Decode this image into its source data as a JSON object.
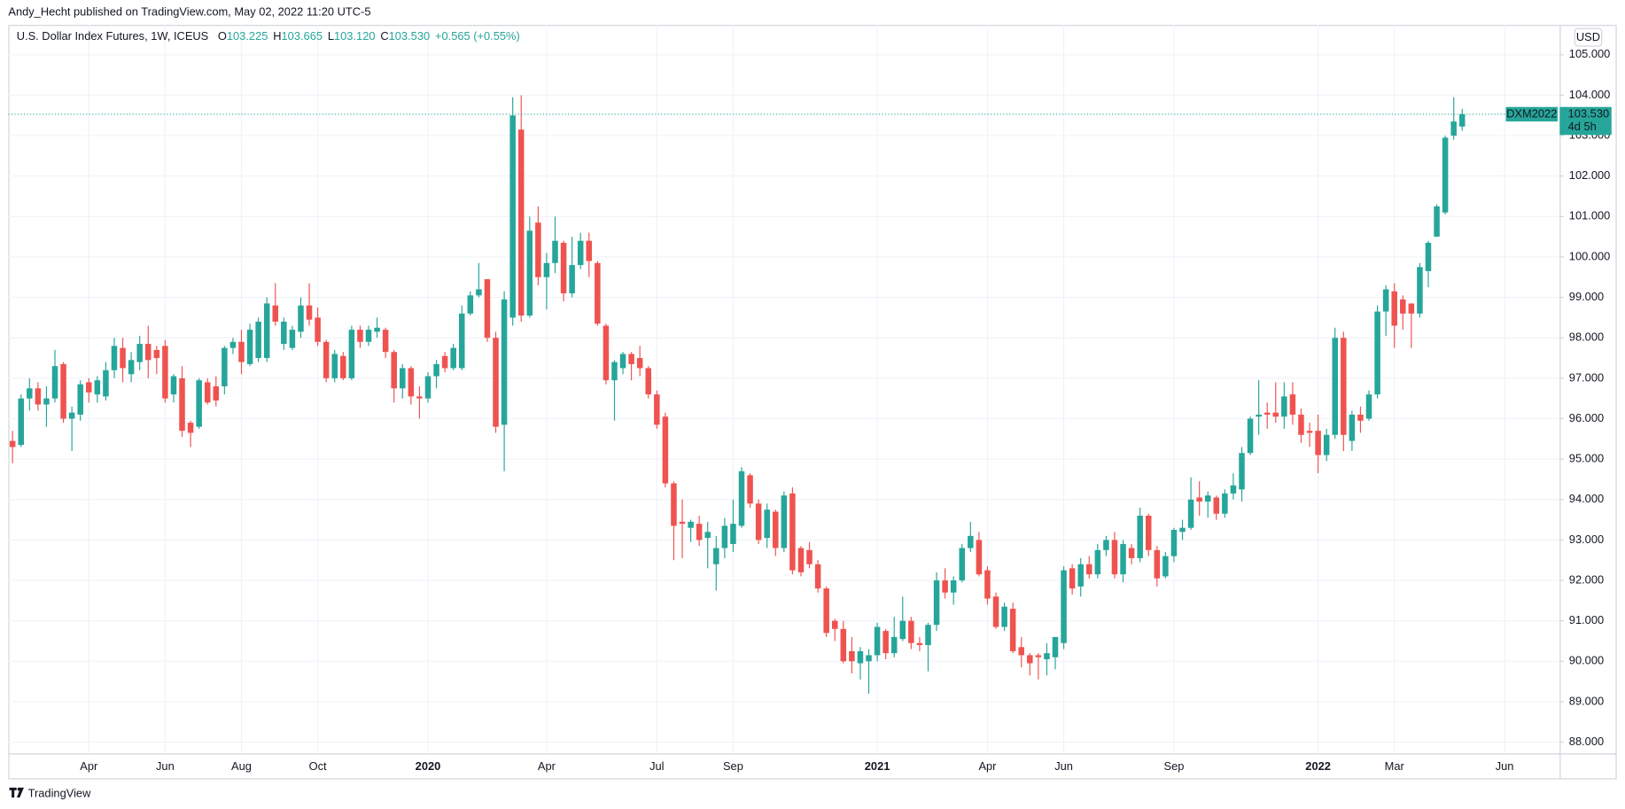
{
  "header": {
    "publisher": "Andy_Hecht published on TradingView.com, May 02, 2022 11:20 UTC-5",
    "brand": "TradingView"
  },
  "chart_data": {
    "type": "candlestick",
    "title": "U.S. Dollar Index Futures, 1W, ICEUS",
    "ohlc_legend": [
      {
        "label": "O",
        "value": "103.225"
      },
      {
        "label": "H",
        "value": "103.665"
      },
      {
        "label": "L",
        "value": "103.120"
      },
      {
        "label": "C",
        "value": "103.530"
      }
    ],
    "change": "+0.565 (+0.55%)",
    "currency": "USD",
    "price_tag": {
      "symbol": "DXM2022",
      "price": "103.530",
      "countdown": "4d 5h"
    },
    "up_color": "#26a69a",
    "down_color": "#ef5350",
    "grid": true,
    "categories": [
      null,
      null,
      null,
      null,
      null,
      null,
      null,
      null,
      null,
      "Apr",
      null,
      null,
      null,
      null,
      null,
      null,
      null,
      null,
      "Jun",
      null,
      null,
      null,
      null,
      null,
      null,
      null,
      null,
      "Aug",
      null,
      null,
      null,
      null,
      null,
      null,
      null,
      null,
      "Oct",
      null,
      null,
      null,
      null,
      null,
      null,
      null,
      null,
      null,
      null,
      null,
      null,
      "2020",
      null,
      null,
      null,
      null,
      null,
      null,
      null,
      null,
      null,
      null,
      null,
      null,
      null,
      "Apr",
      null,
      null,
      null,
      null,
      null,
      null,
      null,
      null,
      null,
      null,
      null,
      null,
      "Jul",
      null,
      null,
      null,
      null,
      null,
      null,
      null,
      null,
      "Sep",
      null,
      null,
      null,
      null,
      null,
      null,
      null,
      null,
      null,
      null,
      null,
      null,
      null,
      null,
      null,
      null,
      "2021",
      null,
      null,
      null,
      null,
      null,
      null,
      null,
      null,
      null,
      null,
      null,
      null,
      "Apr",
      null,
      null,
      null,
      null,
      null,
      null,
      null,
      null,
      "Jun",
      null,
      null,
      null,
      null,
      null,
      null,
      null,
      null,
      null,
      null,
      null,
      null,
      "Sep",
      null,
      null,
      null,
      null,
      null,
      null,
      null,
      null,
      null,
      null,
      null,
      null,
      null,
      null,
      null,
      null,
      "2022",
      null,
      null,
      null,
      null,
      null,
      null,
      null,
      null,
      "Mar",
      null,
      null,
      null,
      null,
      null,
      null,
      null,
      null,
      null,
      null,
      null,
      null,
      "Jun",
      null,
      null,
      null,
      null,
      null,
      null
    ],
    "open": [
      95.45,
      95.35,
      96.5,
      96.75,
      96.35,
      96.5,
      97.35,
      96.0,
      96.1,
      96.9,
      96.6,
      96.55,
      97.2,
      97.75,
      97.1,
      97.4,
      97.85,
      97.7,
      97.8,
      96.6,
      97.0,
      95.9,
      95.8,
      96.9,
      96.8,
      96.8,
      97.75,
      97.9,
      97.35,
      97.5,
      97.5,
      98.8,
      97.85,
      97.75,
      98.15,
      98.8,
      98.5,
      97.9,
      97.0,
      97.55,
      97.0,
      98.2,
      97.9,
      98.15,
      98.2,
      97.65,
      96.75,
      97.25,
      96.55,
      96.5,
      97.05,
      97.55,
      97.25,
      97.25,
      98.6,
      99.05,
      99.45,
      98.0,
      95.85,
      98.5,
      103.15,
      98.55,
      100.85,
      99.5,
      99.85,
      100.35,
      99.1,
      99.8,
      100.4,
      99.85,
      98.3,
      96.95,
      97.25,
      97.6,
      97.5,
      97.25,
      96.6,
      96.05,
      94.4,
      93.45,
      93.3,
      93.4,
      93.05,
      92.4,
      92.8,
      92.9,
      93.35,
      94.6,
      93.9,
      93.05,
      93.7,
      92.8,
      94.15,
      92.8,
      92.75,
      92.4,
      91.8,
      91.0,
      90.8,
      90.25,
      89.95,
      90.0,
      90.15,
      90.75,
      90.2,
      90.55,
      91.0,
      90.45,
      90.4,
      90.9,
      92.0,
      91.7,
      92.0,
      92.8,
      93.0,
      92.25,
      91.6,
      90.85,
      91.3,
      90.35,
      90.15,
      90.15,
      90.05,
      90.1,
      90.45,
      92.3,
      91.85,
      92.4,
      92.15,
      92.75,
      93.0,
      92.15,
      92.8,
      92.55,
      93.6,
      92.75,
      92.1,
      92.6,
      93.2,
      93.3,
      94.05,
      93.95,
      94.05,
      93.65,
      94.15,
      94.25,
      95.15,
      96.05,
      96.15,
      96.15,
      96.05,
      96.6,
      96.1,
      95.7,
      95.7,
      95.1,
      95.6,
      98.0,
      95.45,
      96.1,
      96.0,
      96.6,
      98.65,
      99.15,
      98.95,
      98.85,
      98.6,
      99.65,
      100.5,
      101.1,
      103.0,
      103.225,
      null,
      null,
      null,
      null,
      null,
      null,
      null,
      null,
      null,
      null,
      null
    ],
    "high": [
      95.7,
      96.6,
      97.0,
      96.9,
      96.8,
      97.7,
      97.4,
      96.3,
      96.95,
      97.0,
      97.05,
      97.4,
      98.0,
      98.0,
      97.65,
      98.05,
      98.3,
      97.8,
      97.95,
      97.1,
      97.3,
      95.95,
      97.0,
      97.0,
      97.05,
      97.8,
      98.0,
      98.2,
      98.35,
      98.5,
      99.0,
      99.35,
      98.5,
      98.3,
      99.0,
      99.35,
      98.75,
      97.95,
      97.7,
      97.65,
      98.3,
      98.3,
      98.3,
      98.5,
      98.25,
      97.7,
      97.35,
      97.3,
      96.8,
      97.15,
      97.45,
      97.65,
      97.85,
      98.8,
      99.15,
      99.85,
      99.45,
      98.15,
      99.15,
      103.95,
      104.0,
      101.0,
      101.25,
      100.1,
      101.0,
      100.4,
      100.5,
      100.6,
      100.6,
      99.9,
      98.35,
      97.45,
      97.65,
      97.65,
      97.8,
      97.3,
      96.7,
      96.15,
      94.45,
      94.0,
      93.5,
      93.6,
      93.45,
      93.1,
      93.55,
      94.0,
      94.8,
      94.65,
      94.0,
      93.9,
      93.75,
      94.2,
      94.3,
      92.85,
      92.95,
      92.5,
      91.85,
      91.05,
      91.0,
      90.6,
      90.35,
      90.3,
      90.95,
      90.8,
      91.1,
      91.6,
      91.1,
      90.6,
      90.95,
      92.2,
      92.3,
      92.1,
      92.9,
      93.45,
      93.2,
      92.35,
      91.7,
      91.45,
      91.45,
      90.6,
      90.2,
      90.2,
      90.45,
      90.6,
      92.35,
      92.4,
      92.55,
      92.6,
      92.9,
      93.1,
      93.2,
      93.0,
      92.9,
      93.8,
      93.65,
      92.85,
      92.7,
      93.3,
      93.5,
      94.55,
      94.45,
      94.2,
      94.1,
      94.25,
      94.65,
      95.3,
      96.05,
      96.95,
      96.4,
      96.9,
      96.9,
      96.9,
      96.25,
      95.9,
      96.1,
      95.75,
      98.25,
      98.15,
      96.2,
      96.3,
      96.7,
      98.8,
      99.3,
      99.35,
      99.05,
      98.85,
      99.85,
      100.4,
      101.3,
      103.0,
      103.95,
      103.665,
      null,
      null,
      null,
      null,
      null,
      null,
      null,
      null,
      null,
      null,
      null
    ],
    "low": [
      94.9,
      95.3,
      96.2,
      96.2,
      95.8,
      96.4,
      95.9,
      95.2,
      95.95,
      96.4,
      96.4,
      96.45,
      97.0,
      96.9,
      96.9,
      97.2,
      97.0,
      97.1,
      96.4,
      96.4,
      95.55,
      95.3,
      95.75,
      96.35,
      96.3,
      96.6,
      97.6,
      97.1,
      97.3,
      97.4,
      97.4,
      98.3,
      97.7,
      97.7,
      98.0,
      98.3,
      97.8,
      96.9,
      96.9,
      96.95,
      96.95,
      97.75,
      97.8,
      98.0,
      97.5,
      96.4,
      96.5,
      96.35,
      96.0,
      96.4,
      96.75,
      97.15,
      97.2,
      97.2,
      98.55,
      99.0,
      97.9,
      95.65,
      94.7,
      98.3,
      98.4,
      98.5,
      99.3,
      98.7,
      99.6,
      98.9,
      99.0,
      99.7,
      99.5,
      98.3,
      96.85,
      95.95,
      97.1,
      96.95,
      97.05,
      96.5,
      95.75,
      94.3,
      92.5,
      92.55,
      92.95,
      92.85,
      92.3,
      91.75,
      92.55,
      92.7,
      93.3,
      93.8,
      92.9,
      92.8,
      92.6,
      92.7,
      92.15,
      92.1,
      92.3,
      91.7,
      90.6,
      90.5,
      89.95,
      89.7,
      89.55,
      89.2,
      90.0,
      90.05,
      90.1,
      90.5,
      90.3,
      90.25,
      89.75,
      90.75,
      91.55,
      91.4,
      91.95,
      92.7,
      92.1,
      91.4,
      90.8,
      90.75,
      90.2,
      89.85,
      89.65,
      89.55,
      89.65,
      89.8,
      90.3,
      91.65,
      91.6,
      92.05,
      92.05,
      92.6,
      92.05,
      91.95,
      92.4,
      92.45,
      92.6,
      91.85,
      92.05,
      92.45,
      93.0,
      93.25,
      93.6,
      93.55,
      93.5,
      93.55,
      94.0,
      93.95,
      95.1,
      95.6,
      95.75,
      95.9,
      95.75,
      95.85,
      95.4,
      95.3,
      94.65,
      94.95,
      95.5,
      95.2,
      95.2,
      95.65,
      95.95,
      96.5,
      98.05,
      97.75,
      98.2,
      97.75,
      98.5,
      99.25,
      100.5,
      101.05,
      102.9,
      103.12,
      null,
      null,
      null,
      null,
      null,
      null,
      null,
      null,
      null,
      null,
      null
    ],
    "close": [
      95.3,
      96.5,
      96.75,
      96.35,
      96.5,
      97.3,
      96.0,
      96.15,
      96.85,
      96.65,
      96.95,
      97.2,
      97.8,
      97.25,
      97.45,
      97.85,
      97.45,
      97.5,
      96.5,
      97.05,
      95.7,
      95.65,
      96.95,
      96.4,
      96.45,
      97.75,
      97.9,
      97.4,
      98.2,
      98.4,
      98.85,
      98.4,
      98.4,
      98.2,
      98.8,
      98.45,
      97.9,
      97.0,
      97.6,
      97.0,
      98.2,
      97.9,
      98.2,
      98.25,
      97.65,
      96.75,
      97.25,
      96.55,
      96.5,
      97.05,
      97.35,
      97.25,
      97.75,
      98.6,
      99.05,
      99.2,
      98.0,
      95.8,
      98.95,
      103.5,
      98.55,
      100.65,
      99.5,
      99.85,
      100.4,
      99.1,
      99.8,
      100.4,
      99.9,
      98.35,
      96.95,
      97.4,
      97.6,
      97.35,
      97.25,
      96.6,
      95.85,
      94.4,
      93.35,
      93.4,
      93.45,
      93.0,
      93.2,
      92.8,
      93.35,
      93.4,
      94.7,
      93.9,
      93.0,
      93.75,
      92.8,
      94.1,
      92.25,
      92.2,
      92.4,
      91.8,
      90.7,
      90.8,
      90.0,
      90.0,
      90.25,
      90.15,
      90.85,
      90.2,
      90.6,
      91.0,
      90.45,
      90.4,
      90.9,
      92.0,
      91.7,
      92.0,
      92.8,
      93.1,
      92.15,
      91.55,
      90.85,
      91.35,
      90.25,
      90.15,
      89.95,
      90.1,
      90.2,
      90.6,
      92.25,
      91.8,
      92.4,
      92.15,
      92.75,
      93.0,
      92.15,
      92.9,
      92.55,
      93.6,
      92.75,
      92.05,
      92.6,
      93.25,
      93.3,
      94.0,
      93.95,
      94.1,
      93.65,
      94.15,
      94.35,
      95.15,
      96.0,
      96.1,
      96.1,
      96.05,
      96.55,
      96.1,
      95.6,
      95.65,
      95.1,
      95.6,
      98.0,
      95.6,
      96.1,
      95.95,
      96.6,
      98.65,
      99.2,
      98.3,
      98.6,
      98.6,
      99.75,
      100.35,
      101.25,
      102.95,
      103.35,
      103.53,
      null,
      null,
      null,
      null,
      null,
      null,
      null,
      null,
      null,
      null,
      null
    ],
    "ylim": [
      87.72,
      105.74
    ],
    "yticks": [
      {
        "value": 88,
        "label": "88.000"
      },
      {
        "value": 89,
        "label": "89.000"
      },
      {
        "value": 90,
        "label": "90.000"
      },
      {
        "value": 91,
        "label": "91.000"
      },
      {
        "value": 92,
        "label": "92.000"
      },
      {
        "value": 93,
        "label": "93.000"
      },
      {
        "value": 94,
        "label": "94.000"
      },
      {
        "value": 95,
        "label": "95.000"
      },
      {
        "value": 96,
        "label": "96.000"
      },
      {
        "value": 97,
        "label": "97.000"
      },
      {
        "value": 98,
        "label": "98.000"
      },
      {
        "value": 99,
        "label": "99.000"
      },
      {
        "value": 100,
        "label": "100.000"
      },
      {
        "value": 101,
        "label": "101.000"
      },
      {
        "value": 102,
        "label": "102.000"
      },
      {
        "value": 103,
        "label": "103.000"
      },
      {
        "value": 104,
        "label": "104.000"
      },
      {
        "value": 105,
        "label": "105.000"
      }
    ]
  }
}
